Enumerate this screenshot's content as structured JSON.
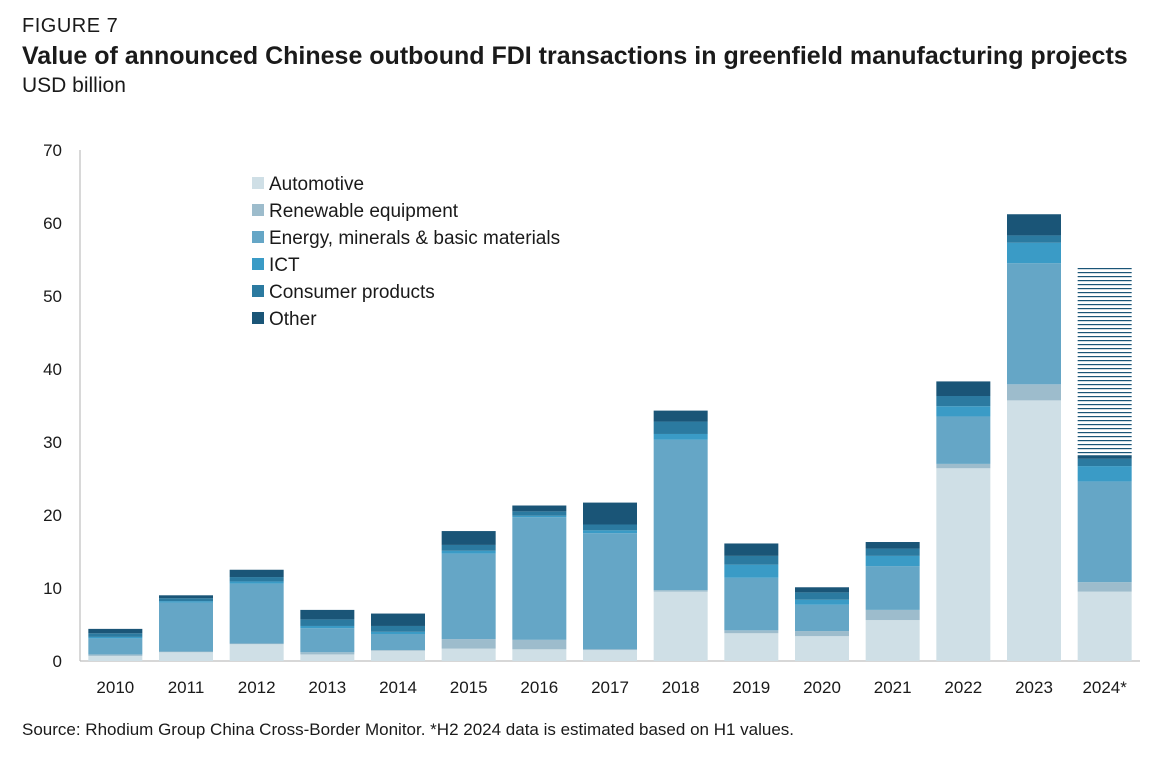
{
  "header": {
    "figure_label": "FIGURE  7",
    "title": "Value of announced Chinese outbound FDI transactions in greenfield manufacturing projects",
    "subtitle": "USD billion"
  },
  "source": "Source: Rhodium Group China Cross-Border Monitor. *H2 2024 data is estimated based on H1 values.",
  "chart_data": {
    "type": "bar",
    "stacked": true,
    "title": "Value of announced Chinese outbound FDI transactions in greenfield manufacturing projects",
    "ylabel": "USD billion",
    "xlabel": "",
    "ylim": [
      0,
      70
    ],
    "yticks": [
      0,
      10,
      20,
      30,
      40,
      50,
      60,
      70
    ],
    "grid": false,
    "legend_position": "top-left",
    "categories": [
      "2010",
      "2011",
      "2012",
      "2013",
      "2014",
      "2015",
      "2016",
      "2017",
      "2018",
      "2019",
      "2020",
      "2021",
      "2022",
      "2023",
      "2024*"
    ],
    "series": [
      {
        "name": "Automotive",
        "color": "#cfdfe6",
        "values": [
          0.7,
          1.2,
          2.3,
          0.9,
          1.4,
          1.7,
          1.6,
          1.5,
          9.5,
          3.8,
          3.4,
          5.6,
          26.4,
          35.7,
          9.5
        ]
      },
      {
        "name": "Renewable equipment",
        "color": "#9dbccc",
        "values": [
          0.2,
          0.1,
          0.1,
          0.3,
          0.1,
          1.3,
          1.3,
          0.1,
          0.2,
          0.4,
          0.7,
          1.4,
          0.6,
          2.2,
          1.3
        ]
      },
      {
        "name": "Energy, minerals & basic materials",
        "color": "#65a6c6",
        "values": [
          2.2,
          6.7,
          8.2,
          3.3,
          2.2,
          11.7,
          16.8,
          15.9,
          20.6,
          7.2,
          3.6,
          6.0,
          6.5,
          16.6,
          13.8
        ]
      },
      {
        "name": "ICT",
        "color": "#3a9bc6",
        "values": [
          0.2,
          0.2,
          0.3,
          0.3,
          0.3,
          0.4,
          0.2,
          0.4,
          0.8,
          1.8,
          0.7,
          1.4,
          1.4,
          2.8,
          2.1
        ]
      },
      {
        "name": "Consumer products",
        "color": "#2b7aa0",
        "values": [
          0.5,
          0.4,
          0.6,
          0.9,
          0.8,
          0.8,
          0.6,
          0.8,
          1.7,
          1.2,
          1.0,
          1.0,
          1.4,
          1.0,
          1.0
        ]
      },
      {
        "name": "Other",
        "color": "#1a5577",
        "values": [
          0.6,
          0.4,
          1.0,
          1.3,
          1.7,
          1.9,
          0.8,
          3.0,
          1.5,
          1.7,
          0.7,
          0.9,
          2.0,
          2.9,
          0.5
        ]
      }
    ],
    "estimated_extension": {
      "category": "2024*",
      "from": 28.2,
      "to": 53.9,
      "style": "hatched"
    }
  }
}
